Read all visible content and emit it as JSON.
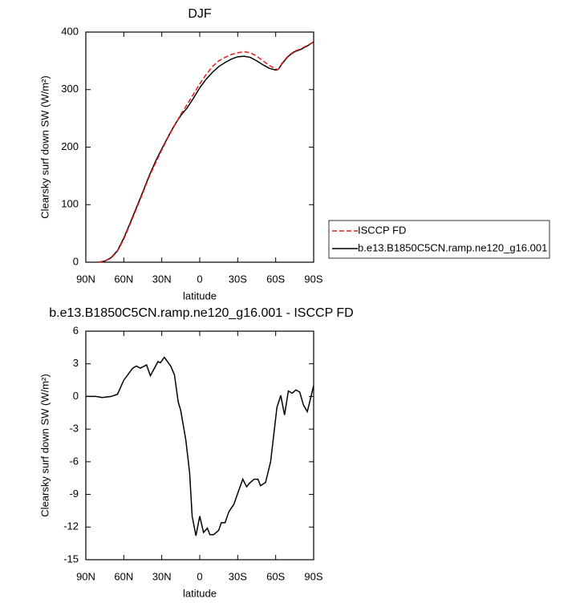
{
  "chart_data": [
    {
      "type": "line",
      "title": "DJF",
      "xlabel": "latitude",
      "ylabel": "Clearsky surf down SW (W/m²)",
      "x": [
        80,
        75,
        70,
        65,
        60,
        55,
        50,
        45,
        40,
        35,
        30,
        25,
        20,
        15,
        10,
        5,
        0,
        -5,
        -10,
        -15,
        -20,
        -25,
        -30,
        -35,
        -40,
        -45,
        -50,
        -55,
        -60,
        -62,
        -65,
        -70,
        -75,
        -80,
        -85,
        -90
      ],
      "series": [
        {
          "name": "ISCCP FD",
          "color": "#e41a1c",
          "dash": true,
          "values": [
            0,
            2,
            7,
            19,
            40,
            66,
            93,
            120,
            148,
            172,
            195,
            217,
            237,
            257,
            274,
            292,
            310,
            326,
            340,
            350,
            356,
            361,
            364,
            366,
            364,
            358,
            350,
            342,
            336,
            335,
            346,
            359,
            367,
            371,
            377,
            383
          ]
        },
        {
          "name": "b.e13.B1850C5CN.ramp.ne120_g16.001",
          "color": "#000000",
          "dash": false,
          "values": [
            0,
            2,
            8,
            20,
            42,
            68,
            95,
            122,
            150,
            175,
            197,
            218,
            238,
            255,
            268,
            285,
            303,
            318,
            330,
            340,
            347,
            353,
            357,
            358,
            356,
            350,
            343,
            337,
            334,
            335,
            345,
            358,
            366,
            370,
            376,
            383
          ]
        }
      ],
      "xlim": [
        90,
        -90
      ],
      "xticks": [
        {
          "value": 90,
          "label": "90N"
        },
        {
          "value": 60,
          "label": "60N"
        },
        {
          "value": 30,
          "label": "30N"
        },
        0,
        {
          "value": -30,
          "label": "30S"
        },
        {
          "value": -60,
          "label": "60S"
        },
        {
          "value": -90,
          "label": "90S"
        }
      ],
      "ylim": [
        0,
        400
      ],
      "yticks": [
        0,
        100,
        200,
        300,
        400
      ],
      "legend": "outside-right"
    },
    {
      "type": "line",
      "title": "b.e13.B1850C5CN.ramp.ne120_g16.001 - ISCCP FD",
      "xlabel": "latitude",
      "ylabel": "Clearsky surf down SW (W/m²)",
      "x": [
        90,
        82,
        77,
        70,
        65,
        60,
        53,
        50,
        47,
        42,
        39,
        33,
        31,
        28,
        23,
        20,
        17,
        15,
        11,
        8,
        6,
        3,
        0,
        -3,
        -6,
        -8,
        -11,
        -15,
        -17,
        -20,
        -23,
        -27,
        -30,
        -34,
        -37,
        -39,
        -43,
        -46,
        -48,
        -52,
        -56,
        -59,
        -61,
        -64,
        -67,
        -70,
        -73,
        -76,
        -79,
        -82,
        -85,
        -90
      ],
      "values": [
        0,
        0,
        -0.1,
        0,
        0.2,
        1.5,
        2.6,
        2.8,
        2.6,
        2.9,
        1.9,
        3.2,
        3.1,
        3.6,
        2.8,
        2,
        -0.5,
        -1.3,
        -4,
        -7,
        -11,
        -12.8,
        -11,
        -12.5,
        -12.1,
        -12.7,
        -12.7,
        -12.3,
        -11.6,
        -11.6,
        -10.6,
        -9.9,
        -8.9,
        -7.6,
        -8.3,
        -8,
        -7.6,
        -7.6,
        -8.2,
        -7.9,
        -6,
        -3,
        -1,
        0.1,
        -1.7,
        0.5,
        0.3,
        0.6,
        0.4,
        -0.8,
        -1.4,
        1
      ],
      "color": "#000000",
      "xlim": [
        90,
        -90
      ],
      "xticks": [
        {
          "value": 90,
          "label": "90N"
        },
        {
          "value": 60,
          "label": "60N"
        },
        {
          "value": 30,
          "label": "30N"
        },
        0,
        {
          "value": -30,
          "label": "30S"
        },
        {
          "value": -60,
          "label": "60S"
        },
        {
          "value": -90,
          "label": "90S"
        }
      ],
      "ylim": [
        -15,
        6
      ],
      "yticks": [
        -15,
        -12,
        -9,
        -6,
        -3,
        0,
        3,
        6
      ]
    }
  ]
}
